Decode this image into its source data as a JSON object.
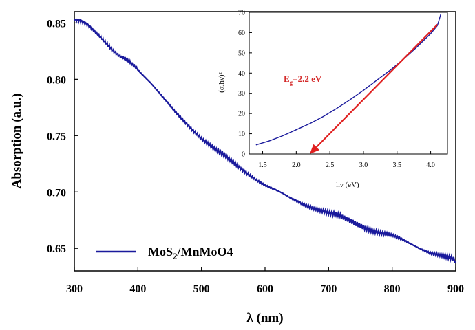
{
  "chart_data": [
    {
      "type": "line",
      "title": "",
      "xlabel": "λ (nm)",
      "ylabel": "Absorption (a.u.)",
      "xlim": [
        300,
        900
      ],
      "ylim": [
        0.63,
        0.86
      ],
      "xticks": [
        "300",
        "400",
        "500",
        "600",
        "700",
        "800",
        "900"
      ],
      "yticks": [
        "0.65",
        "0.70",
        "0.75",
        "0.80",
        "0.85"
      ],
      "legend_position": "bottom-left",
      "series": [
        {
          "name": "MoS2/MnMoO4",
          "color": "#1a1a9c",
          "x": [
            300,
            310,
            320,
            330,
            340,
            350,
            360,
            370,
            380,
            390,
            400,
            420,
            440,
            460,
            480,
            500,
            520,
            540,
            560,
            580,
            600,
            620,
            640,
            660,
            680,
            700,
            720,
            740,
            760,
            780,
            800,
            820,
            840,
            860,
            880,
            900
          ],
          "y": [
            0.853,
            0.852,
            0.849,
            0.844,
            0.838,
            0.832,
            0.826,
            0.821,
            0.818,
            0.814,
            0.809,
            0.797,
            0.783,
            0.77,
            0.759,
            0.748,
            0.738,
            0.73,
            0.722,
            0.714,
            0.706,
            0.7,
            0.694,
            0.69,
            0.686,
            0.681,
            0.677,
            0.673,
            0.669,
            0.664,
            0.66,
            0.656,
            0.652,
            0.647,
            0.643,
            0.638
          ]
        }
      ]
    },
    {
      "type": "line",
      "title": "",
      "xlabel": "hν (eV)",
      "ylabel": "(α.hν)²",
      "xlim": [
        1.3,
        4.25
      ],
      "ylim": [
        0,
        70
      ],
      "xticks": [
        "1.5",
        "2.0",
        "2.5",
        "3.0",
        "3.5",
        "4.0"
      ],
      "yticks": [
        "0",
        "10",
        "20",
        "30",
        "40",
        "50",
        "60",
        "70"
      ],
      "series": [
        {
          "color": "#1a1a9c",
          "x": [
            1.4,
            1.6,
            1.8,
            2.0,
            2.2,
            2.4,
            2.6,
            2.8,
            3.0,
            3.2,
            3.4,
            3.6,
            3.8,
            4.0,
            4.1,
            4.15
          ],
          "y": [
            4.5,
            6.5,
            9.0,
            12.0,
            15.0,
            18.5,
            22.5,
            26.8,
            31.5,
            36.5,
            41.5,
            47.0,
            53.0,
            59.5,
            63.5,
            69.0
          ]
        }
      ],
      "fit_line": {
        "color": "#e02020",
        "from": [
          4.1,
          64
        ],
        "to": [
          2.2,
          0
        ]
      },
      "annotation": {
        "symbol": "E",
        "subscript": "g",
        "value": "=2.2 eV"
      }
    }
  ],
  "legend": {
    "label_base": "MoS",
    "label_sub": "2",
    "label_rest": "/MnMoO4"
  }
}
